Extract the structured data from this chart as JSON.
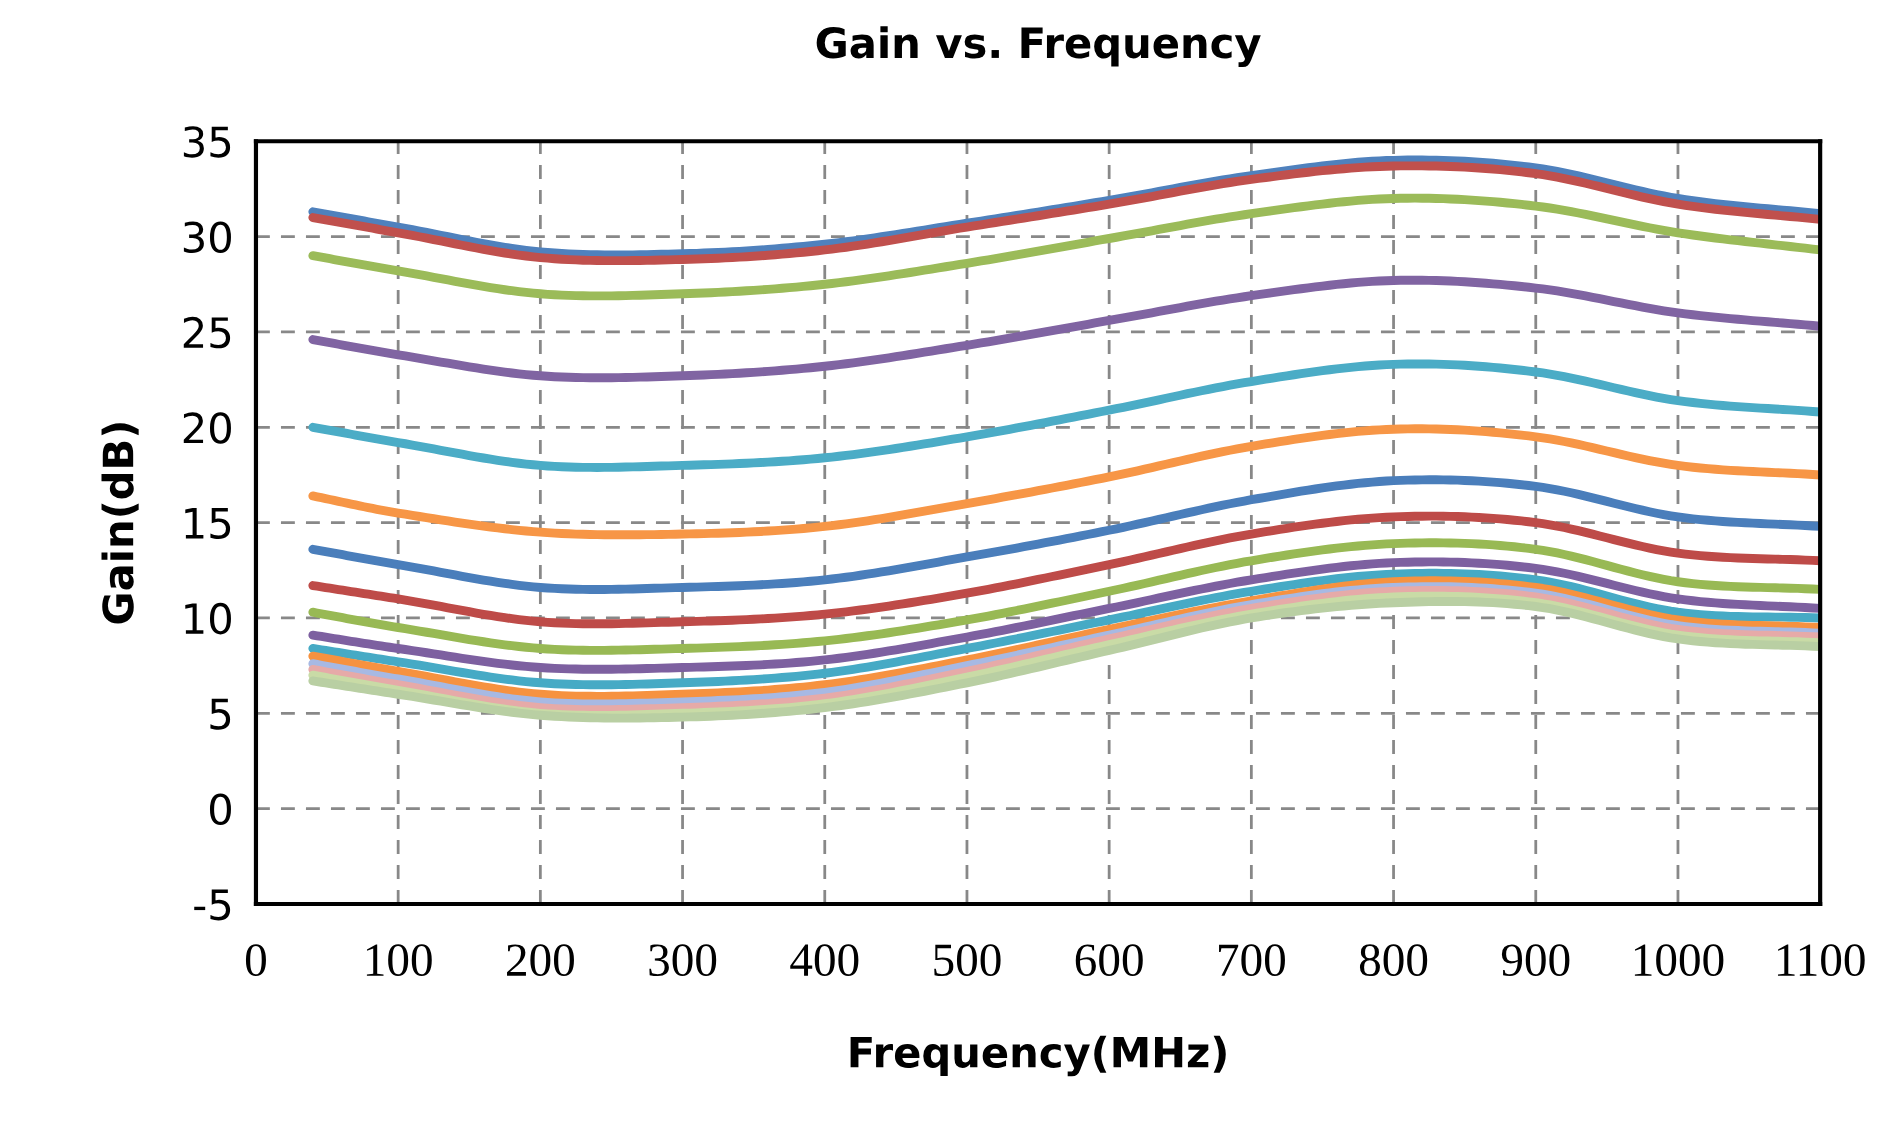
{
  "chart_data": {
    "type": "line",
    "title": "Gain vs. Frequency",
    "xlabel": "Frequency(MHz)",
    "ylabel": "Gain(dB)",
    "x": [
      40,
      100,
      200,
      300,
      400,
      500,
      600,
      700,
      800,
      900,
      1000,
      1100
    ],
    "xlim": [
      0,
      1100
    ],
    "xticks": [
      0,
      100,
      200,
      300,
      400,
      500,
      600,
      700,
      800,
      900,
      1000,
      1100
    ],
    "ylim": [
      -5,
      35
    ],
    "yticks": [
      -5,
      0,
      5,
      10,
      15,
      20,
      25,
      30,
      35
    ],
    "grid": true,
    "marker": "none",
    "line_style": "solid",
    "series": [
      {
        "color": "#4f81bd",
        "values": [
          31.3,
          30.5,
          29.2,
          29.1,
          29.6,
          30.7,
          31.9,
          33.2,
          34.0,
          33.6,
          32.0,
          31.2
        ]
      },
      {
        "color": "#c0504d",
        "values": [
          31.0,
          30.2,
          28.9,
          28.8,
          29.3,
          30.5,
          31.7,
          33.0,
          33.7,
          33.3,
          31.7,
          30.9
        ]
      },
      {
        "color": "#9bbb59",
        "values": [
          29.0,
          28.2,
          27.0,
          27.0,
          27.5,
          28.6,
          29.9,
          31.2,
          32.0,
          31.6,
          30.2,
          29.3
        ]
      },
      {
        "color": "#8064a2",
        "values": [
          24.6,
          23.8,
          22.7,
          22.7,
          23.2,
          24.3,
          25.6,
          26.9,
          27.7,
          27.3,
          26.0,
          25.3
        ]
      },
      {
        "color": "#4bacc6",
        "values": [
          20.0,
          19.2,
          18.0,
          18.0,
          18.4,
          19.5,
          20.9,
          22.4,
          23.3,
          22.9,
          21.4,
          20.8
        ]
      },
      {
        "color": "#f79646",
        "values": [
          16.4,
          15.5,
          14.5,
          14.4,
          14.8,
          16.0,
          17.4,
          19.0,
          19.9,
          19.5,
          18.0,
          17.5
        ]
      },
      {
        "color": "#4a7ebb",
        "values": [
          13.6,
          12.8,
          11.6,
          11.6,
          12.0,
          13.2,
          14.6,
          16.2,
          17.2,
          16.9,
          15.3,
          14.8
        ]
      },
      {
        "color": "#be4b48",
        "values": [
          11.7,
          11.0,
          9.8,
          9.8,
          10.2,
          11.3,
          12.8,
          14.4,
          15.3,
          15.0,
          13.4,
          13.0
        ]
      },
      {
        "color": "#98b954",
        "values": [
          10.3,
          9.5,
          8.4,
          8.4,
          8.8,
          9.9,
          11.4,
          13.0,
          13.9,
          13.6,
          11.9,
          11.5
        ]
      },
      {
        "color": "#7d60a0",
        "values": [
          9.1,
          8.4,
          7.4,
          7.4,
          7.8,
          9.0,
          10.5,
          12.0,
          12.9,
          12.6,
          11.0,
          10.5
        ]
      },
      {
        "color": "#46aac5",
        "values": [
          8.4,
          7.7,
          6.6,
          6.6,
          7.1,
          8.4,
          9.9,
          11.4,
          12.3,
          12.0,
          10.3,
          10.0
        ]
      },
      {
        "color": "#f69240",
        "values": [
          8.0,
          7.2,
          6.0,
          6.0,
          6.5,
          7.8,
          9.4,
          10.9,
          11.9,
          11.6,
          9.9,
          9.5
        ]
      },
      {
        "color": "#a7b9e3",
        "values": [
          7.6,
          6.8,
          5.6,
          5.6,
          6.1,
          7.5,
          9.1,
          10.7,
          11.6,
          11.3,
          9.6,
          9.2
        ]
      },
      {
        "color": "#e6aaa8",
        "values": [
          7.3,
          6.5,
          5.3,
          5.3,
          5.8,
          7.2,
          8.9,
          10.5,
          11.4,
          11.1,
          9.4,
          9.0
        ]
      },
      {
        "color": "#c9dba6",
        "values": [
          7.0,
          6.2,
          5.0,
          5.0,
          5.5,
          6.9,
          8.6,
          10.2,
          11.1,
          10.8,
          9.1,
          8.7
        ]
      },
      {
        "color": "#b9cfa3",
        "values": [
          6.7,
          6.0,
          4.9,
          4.8,
          5.3,
          6.6,
          8.3,
          10.0,
          10.8,
          10.6,
          8.9,
          8.5
        ]
      }
    ]
  }
}
